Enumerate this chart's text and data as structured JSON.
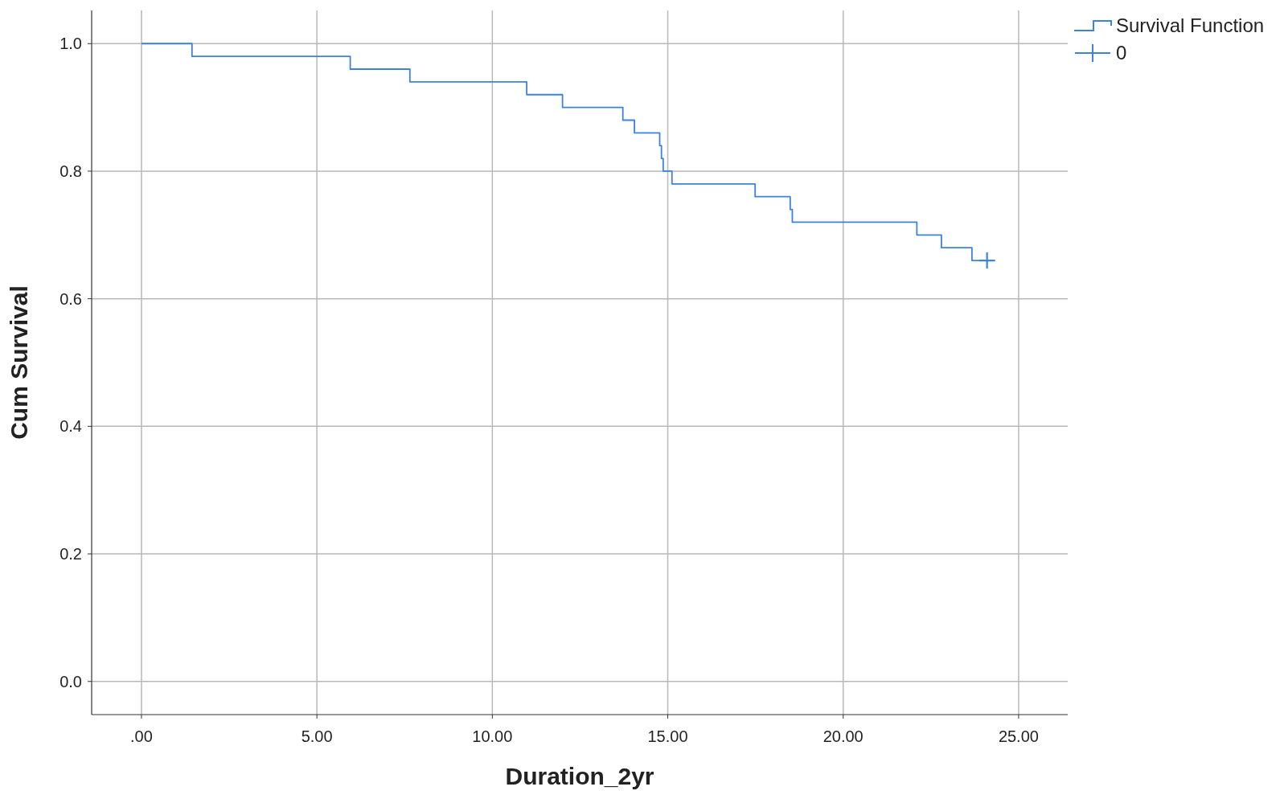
{
  "chart_data": {
    "type": "step",
    "xlabel": "Duration_2yr",
    "ylabel": "Cum Survival",
    "xlim": [
      -1.42,
      26.4
    ],
    "ylim": [
      -0.052,
      1.052
    ],
    "xticks": [
      {
        "value": 0,
        "label": ".00"
      },
      {
        "value": 5,
        "label": "5.00"
      },
      {
        "value": 10,
        "label": "10.00"
      },
      {
        "value": 15,
        "label": "15.00"
      },
      {
        "value": 20,
        "label": "20.00"
      },
      {
        "value": 25,
        "label": "25.00"
      }
    ],
    "yticks": [
      {
        "value": 0,
        "label": "0.0"
      },
      {
        "value": 0.2,
        "label": "0.2"
      },
      {
        "value": 0.4,
        "label": "0.4"
      },
      {
        "value": 0.6,
        "label": "0.6"
      },
      {
        "value": 0.8,
        "label": "0.8"
      },
      {
        "value": 1,
        "label": "1.0"
      }
    ],
    "grid": true,
    "legend": "top right",
    "series": [
      {
        "name": "Survival Function",
        "color": "#3c82e0",
        "x": [
          0,
          1.44,
          5.95,
          7.65,
          10.98,
          12.0,
          13.72,
          14.05,
          14.77,
          14.82,
          14.87,
          15.12,
          17.49,
          18.49,
          18.55,
          22.1,
          22.8,
          23.67,
          24.1
        ],
        "values": [
          1,
          0.98,
          0.96,
          0.94,
          0.92,
          0.9,
          0.88,
          0.86,
          0.84,
          0.82,
          0.8,
          0.78,
          0.76,
          0.74,
          0.72,
          0.7,
          0.68,
          0.66,
          0.66
        ]
      },
      {
        "name": "0",
        "type": "scatter",
        "marker": "cross",
        "color": "#3c82e0",
        "x": [
          24.1
        ],
        "values": [
          0.66
        ]
      }
    ]
  }
}
